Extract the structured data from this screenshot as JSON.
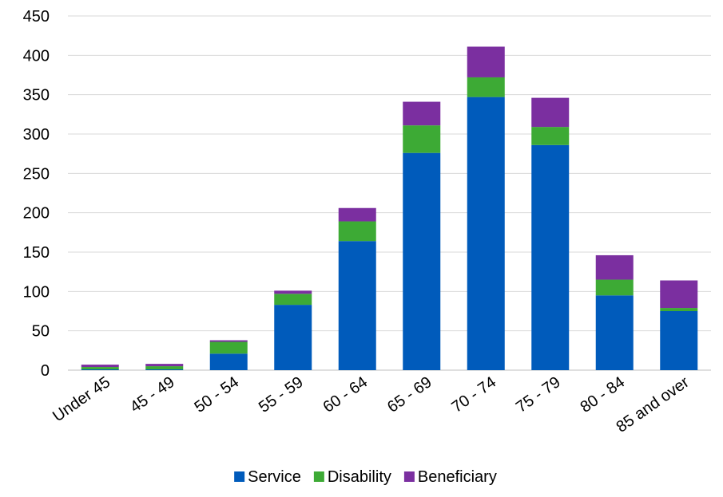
{
  "chart_data": {
    "type": "bar",
    "stacked": true,
    "title": "",
    "xlabel": "",
    "ylabel": "",
    "ylim": [
      0,
      450
    ],
    "y_ticks": [
      0,
      50,
      100,
      150,
      200,
      250,
      300,
      350,
      400,
      450
    ],
    "grid": "horizontal",
    "legend_position": "bottom",
    "categories": [
      "Under 45",
      "45 - 49",
      "50 - 54",
      "55 - 59",
      "60 - 64",
      "65 - 69",
      "70 - 74",
      "75 - 79",
      "80 - 84",
      "85 and over"
    ],
    "series": [
      {
        "name": "Service",
        "color": "#005BBB",
        "values": [
          1,
          1,
          21,
          83,
          164,
          276,
          347,
          286,
          95,
          75
        ]
      },
      {
        "name": "Disability",
        "color": "#3DAA35",
        "values": [
          3,
          4,
          15,
          14,
          25,
          35,
          25,
          23,
          20,
          4
        ]
      },
      {
        "name": "Beneficiary",
        "color": "#7B2FA0",
        "values": [
          3,
          3,
          2,
          4,
          17,
          30,
          39,
          37,
          31,
          35
        ]
      }
    ]
  }
}
